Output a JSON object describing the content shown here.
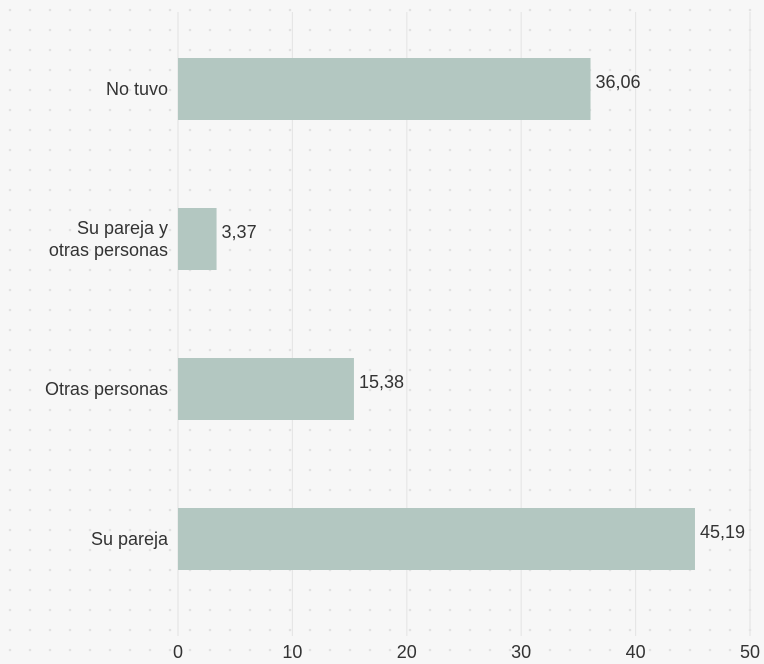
{
  "chart_data": {
    "type": "bar",
    "orientation": "horizontal",
    "categories": [
      "No tuvo",
      "Su pareja y\notras personas",
      "Otras personas",
      "Su pareja"
    ],
    "values": [
      36.06,
      3.37,
      15.38,
      45.19
    ],
    "value_labels": [
      "36,06",
      "3,37",
      "15,38",
      "45,19"
    ],
    "color": "#b3c7c1",
    "xlim": [
      0,
      50
    ],
    "xticks": [
      0,
      10,
      20,
      30,
      40,
      50
    ],
    "grid": true
  }
}
